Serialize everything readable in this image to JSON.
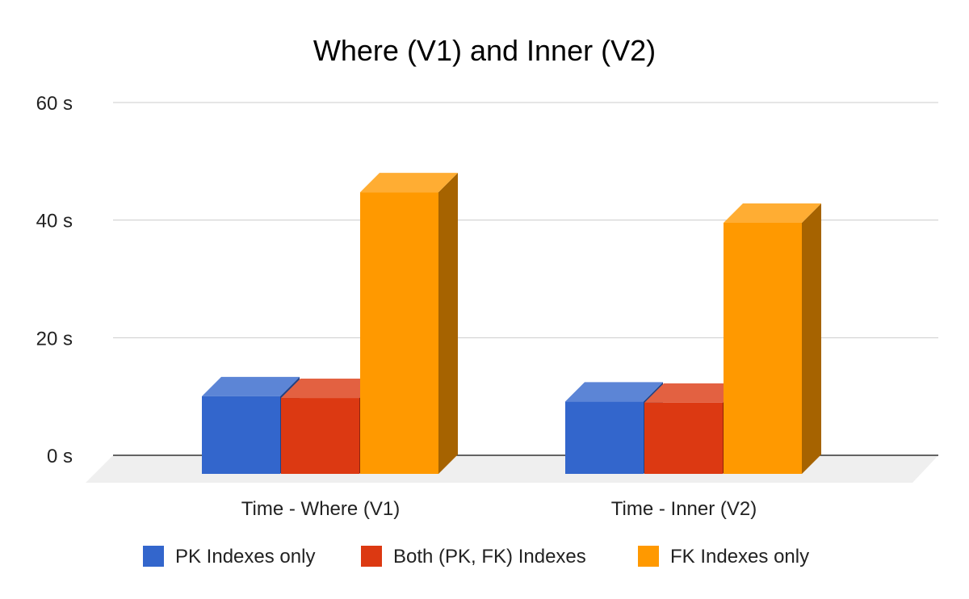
{
  "chart_data": {
    "type": "bar",
    "style": "3d",
    "title": "Where (V1) and Inner (V2)",
    "categories": [
      "Time - Where (V1)",
      "Time - Inner (V2)"
    ],
    "series": [
      {
        "name": "PK Indexes only",
        "values": [
          13.2,
          12.3
        ],
        "color": "#3366cc"
      },
      {
        "name": "Both (PK, FK) Indexes",
        "values": [
          12.9,
          12.1
        ],
        "color": "#dc3912"
      },
      {
        "name": "FK Indexes only",
        "values": [
          47.9,
          42.7
        ],
        "color": "#ff9900"
      }
    ],
    "yticks": [
      "0 s",
      "20 s",
      "40 s",
      "60 s"
    ],
    "ytick_values": [
      0,
      20,
      40,
      60
    ],
    "ylim": [
      0,
      60
    ],
    "grid": true,
    "legend": "bottom"
  }
}
